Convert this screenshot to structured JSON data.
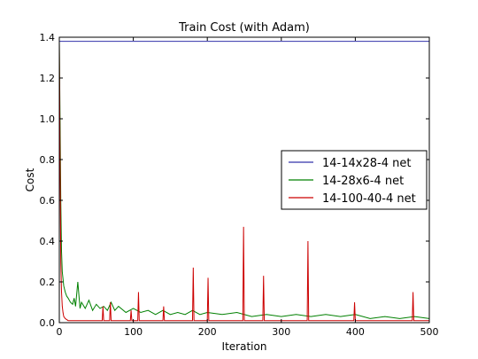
{
  "chart_data": {
    "type": "line",
    "title": "Train Cost (with Adam)",
    "xlabel": "Iteration",
    "ylabel": "Cost",
    "xlim": [
      0,
      500
    ],
    "ylim": [
      0.0,
      1.4
    ],
    "xticks": [
      0,
      100,
      200,
      300,
      400,
      500
    ],
    "xtick_labels": [
      "0",
      "100",
      "200",
      "300",
      "400",
      "500"
    ],
    "yticks": [
      0.0,
      0.2,
      0.4,
      0.6,
      0.8,
      1.0,
      1.2,
      1.4
    ],
    "ytick_labels": [
      "0.0",
      "0.2",
      "0.4",
      "0.6",
      "0.8",
      "1.0",
      "1.2",
      "1.4"
    ],
    "grid": false,
    "legend_position": "center-right",
    "series": [
      {
        "name": "14-14x28-4 net",
        "color": "#3333aa",
        "x": [
          0,
          500
        ],
        "y": [
          1.38,
          1.38
        ]
      },
      {
        "name": "14-28x6-4 net",
        "color": "#008000",
        "x": [
          0,
          1,
          2,
          3,
          4,
          6,
          8,
          10,
          12,
          15,
          18,
          20,
          22,
          25,
          28,
          30,
          35,
          40,
          45,
          50,
          55,
          60,
          65,
          70,
          75,
          80,
          90,
          100,
          110,
          120,
          130,
          140,
          150,
          160,
          170,
          180,
          190,
          200,
          220,
          240,
          260,
          280,
          300,
          320,
          340,
          360,
          380,
          400,
          420,
          440,
          460,
          480,
          500
        ],
        "y": [
          1.38,
          1.0,
          0.6,
          0.35,
          0.25,
          0.18,
          0.15,
          0.13,
          0.12,
          0.1,
          0.09,
          0.12,
          0.08,
          0.2,
          0.07,
          0.1,
          0.07,
          0.11,
          0.06,
          0.09,
          0.07,
          0.08,
          0.06,
          0.1,
          0.06,
          0.08,
          0.05,
          0.07,
          0.05,
          0.06,
          0.04,
          0.06,
          0.04,
          0.05,
          0.04,
          0.06,
          0.04,
          0.05,
          0.04,
          0.05,
          0.03,
          0.04,
          0.03,
          0.04,
          0.03,
          0.04,
          0.03,
          0.04,
          0.02,
          0.03,
          0.02,
          0.03,
          0.02
        ]
      },
      {
        "name": "14-100-40-4 net",
        "color": "#cc0000",
        "x": [
          0,
          1,
          2,
          3,
          4,
          5,
          6,
          8,
          10,
          12,
          15,
          20,
          30,
          40,
          58,
          59,
          60,
          61,
          62,
          68,
          69,
          70,
          96,
          97,
          98,
          106,
          107,
          108,
          140,
          141,
          142,
          180,
          181,
          182,
          200,
          201,
          202,
          248,
          249,
          250,
          275,
          276,
          277,
          335,
          336,
          337,
          398,
          399,
          400,
          477,
          478,
          479,
          500
        ],
        "y": [
          1.38,
          0.8,
          0.3,
          0.15,
          0.08,
          0.05,
          0.03,
          0.02,
          0.015,
          0.01,
          0.01,
          0.01,
          0.01,
          0.01,
          0.01,
          0.08,
          0.01,
          0.01,
          0.01,
          0.01,
          0.1,
          0.01,
          0.01,
          0.06,
          0.01,
          0.01,
          0.15,
          0.01,
          0.01,
          0.08,
          0.01,
          0.01,
          0.27,
          0.01,
          0.01,
          0.22,
          0.01,
          0.01,
          0.47,
          0.01,
          0.01,
          0.23,
          0.01,
          0.01,
          0.4,
          0.01,
          0.01,
          0.1,
          0.01,
          0.01,
          0.15,
          0.01,
          0.01
        ]
      }
    ]
  }
}
